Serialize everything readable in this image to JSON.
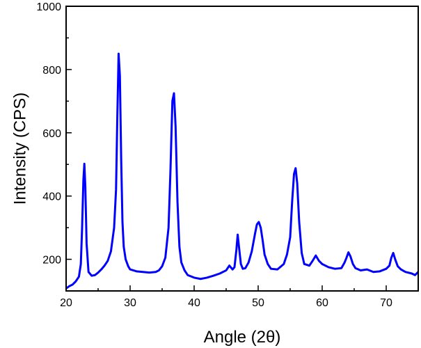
{
  "chart_data": {
    "type": "line",
    "xlabel": "Angle (2θ)",
    "ylabel": "Intensity (CPS)",
    "xlim": [
      20,
      75
    ],
    "ylim": [
      100,
      1000
    ],
    "xticks": [
      20,
      30,
      40,
      50,
      60,
      70
    ],
    "yticks": [
      200,
      400,
      600,
      800,
      1000
    ],
    "grid": false,
    "line_color": "#0000ff",
    "series": [
      {
        "x": [
          20,
          20.5,
          21,
          21.5,
          22,
          22.3,
          22.5,
          22.7,
          22.85,
          23.0,
          23.2,
          23.5,
          24,
          24.5,
          25,
          25.5,
          26,
          26.5,
          27,
          27.5,
          27.8,
          28.0,
          28.2,
          28.4,
          28.6,
          28.8,
          29.0,
          29.3,
          29.7,
          30,
          30.5,
          31,
          32,
          33,
          34,
          34.5,
          35,
          35.5,
          36,
          36.3,
          36.6,
          36.85,
          37.1,
          37.4,
          37.7,
          38,
          38.5,
          39,
          40,
          41,
          42,
          43,
          44,
          45,
          45.5,
          46,
          46.3,
          46.6,
          46.8,
          47.0,
          47.3,
          47.6,
          48,
          48.5,
          49,
          49.5,
          49.8,
          50.1,
          50.4,
          50.7,
          51,
          51.5,
          52,
          53,
          54,
          54.5,
          55,
          55.3,
          55.6,
          55.85,
          56.1,
          56.4,
          56.8,
          57.2,
          58,
          58.5,
          59,
          59.5,
          60,
          61,
          62,
          63,
          63.5,
          63.8,
          64.1,
          64.4,
          64.8,
          65.2,
          66,
          67,
          68,
          69,
          70,
          70.5,
          70.8,
          71.1,
          71.4,
          71.8,
          72.3,
          73,
          74,
          74.5,
          75
        ],
        "y": [
          108,
          115,
          120,
          130,
          145,
          185,
          300,
          450,
          502,
          430,
          250,
          160,
          148,
          150,
          158,
          168,
          180,
          195,
          225,
          300,
          420,
          650,
          850,
          780,
          520,
          320,
          240,
          200,
          178,
          168,
          165,
          162,
          160,
          158,
          160,
          165,
          178,
          205,
          300,
          480,
          700,
          725,
          620,
          380,
          240,
          190,
          165,
          150,
          142,
          138,
          142,
          148,
          155,
          165,
          180,
          168,
          175,
          230,
          278,
          240,
          185,
          170,
          172,
          190,
          225,
          280,
          310,
          318,
          300,
          260,
          215,
          185,
          170,
          168,
          185,
          215,
          270,
          380,
          470,
          488,
          440,
          320,
          220,
          185,
          180,
          195,
          212,
          195,
          185,
          175,
          170,
          172,
          190,
          205,
          222,
          210,
          185,
          172,
          165,
          168,
          160,
          162,
          170,
          180,
          205,
          220,
          200,
          178,
          168,
          160,
          155,
          150,
          160
        ]
      }
    ]
  }
}
